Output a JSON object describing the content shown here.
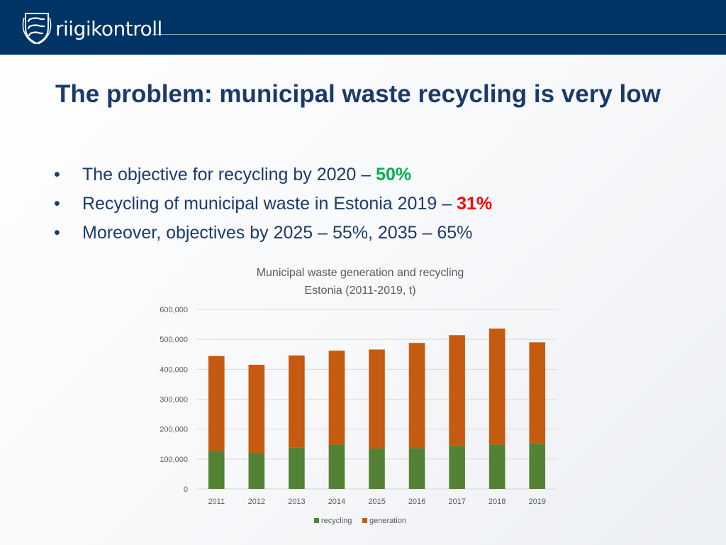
{
  "header": {
    "brand": "riigikontroll",
    "logo_icon": "coat-of-arms-icon",
    "background": "#003366"
  },
  "slide": {
    "title": "The problem: municipal waste recycling is very low",
    "bullets": [
      {
        "text": "The objective for recycling by 2020 – ",
        "highlight": "50%",
        "highlight_color": "#00b050"
      },
      {
        "text": "Recycling of municipal waste in Estonia 2019 – ",
        "highlight": "31%",
        "highlight_color": "#ff0000"
      },
      {
        "text": "Moreover, objectives by 2025 – 55%, 2035 – 65%",
        "highlight": "",
        "highlight_color": ""
      }
    ]
  },
  "chart_data": {
    "type": "bar",
    "stacked": true,
    "title": "Municipal waste generation and recycling",
    "subtitle": "Estonia (2011-2019, t)",
    "xlabel": "",
    "ylabel": "",
    "categories": [
      "2011",
      "2012",
      "2013",
      "2014",
      "2015",
      "2016",
      "2017",
      "2018",
      "2019"
    ],
    "series": [
      {
        "name": "recycling",
        "color": "#548235",
        "values": [
          128000,
          121000,
          138000,
          148000,
          135000,
          136000,
          143000,
          149000,
          151000
        ]
      },
      {
        "name": "generation",
        "color": "#c55a11",
        "values": [
          316000,
          294000,
          308000,
          314000,
          331000,
          352000,
          371000,
          387000,
          339000
        ]
      }
    ],
    "ylim": [
      0,
      600000
    ],
    "yticks": [
      0,
      100000,
      200000,
      300000,
      400000,
      500000,
      600000
    ],
    "ytick_labels": [
      "0",
      "100,000",
      "200,000",
      "300,000",
      "400,000",
      "500,000",
      "600,000"
    ],
    "grid": true,
    "legend": "bottom"
  }
}
